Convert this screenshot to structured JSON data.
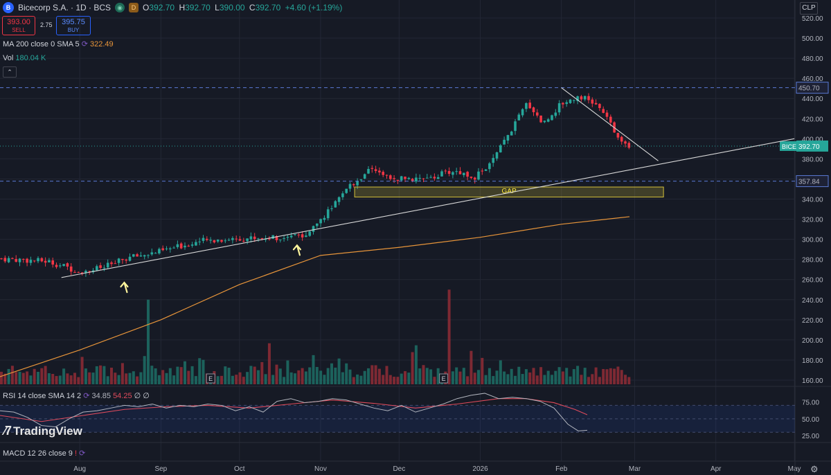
{
  "header": {
    "symbol": "Bicecorp S.A. · 1D · BCS",
    "logo_icon": "bicecorp-logo-icon",
    "ohlc": [
      {
        "k": "O",
        "v": "392.70"
      },
      {
        "k": "H",
        "v": "392.70"
      },
      {
        "k": "L",
        "v": "390.00"
      },
      {
        "k": "C",
        "v": "392.70"
      }
    ],
    "change": "+4.60 (+1.19%)",
    "sell_value": "393.00",
    "sell_label": "SELL",
    "spread": "2.75",
    "buy_value": "395.75",
    "buy_label": "BUY",
    "d_badge": "D"
  },
  "indicators": {
    "ma_label": "MA 200 close 0 SMA 5",
    "ma_value": "322.49",
    "vol_label": "Vol",
    "vol_value": "180.04 K",
    "rsi_label": "RSI 14 close SMA 14 2",
    "rsi_value": "34.85",
    "rsi_sma": "54.25",
    "rsi_extra": "∅ ∅",
    "macd_label": "MACD 12 26 close 9"
  },
  "currency": "CLP",
  "brand": "TradingView",
  "colors": {
    "up": "#26a69a",
    "down": "#f23645",
    "ma": "#e8953a",
    "rsi": "#b2b5be",
    "rsi_sma": "#e04b5c",
    "accent": "#2962ff"
  },
  "chart_data": {
    "type": "candlestick",
    "y_ticks": [
      "520.00",
      "500.00",
      "480.00",
      "460.00",
      "440.00",
      "420.00",
      "400.00",
      "380.00",
      "360.00",
      "340.00",
      "320.00",
      "300.00",
      "280.00",
      "260.00",
      "240.00",
      "220.00",
      "200.00",
      "180.00",
      "160.00"
    ],
    "y_range": [
      160,
      520
    ],
    "x_labels": [
      "Aug",
      "Sep",
      "Oct",
      "Nov",
      "Dec",
      "2026",
      "Feb",
      "Mar",
      "Apr",
      "May"
    ],
    "x_label_dates": [
      "2025-08-01",
      "2025-09-01",
      "2025-10-01",
      "2025-11-01",
      "2025-12-01",
      "2026-01-01",
      "2026-02-01",
      "2026-03-01",
      "2026-04-01",
      "2026-05-01"
    ],
    "price_path": [
      [
        "2025-07-01",
        281
      ],
      [
        "2025-07-20",
        278
      ],
      [
        "2025-08-01",
        268
      ],
      [
        "2025-08-10",
        272
      ],
      [
        "2025-08-20",
        282
      ],
      [
        "2025-09-01",
        288
      ],
      [
        "2025-09-15",
        298
      ],
      [
        "2025-10-01",
        301
      ],
      [
        "2025-10-15",
        302
      ],
      [
        "2025-10-25",
        303
      ],
      [
        "2025-11-01",
        320
      ],
      [
        "2025-11-07",
        336
      ],
      [
        "2025-11-12",
        352
      ],
      [
        "2025-11-20",
        370
      ],
      [
        "2025-11-28",
        360
      ],
      [
        "2025-12-10",
        360
      ],
      [
        "2025-12-22",
        368
      ],
      [
        "2025-12-30",
        362
      ],
      [
        "2026-01-05",
        375
      ],
      [
        "2026-01-12",
        405
      ],
      [
        "2026-01-19",
        436
      ],
      [
        "2026-01-25",
        415
      ],
      [
        "2026-02-01",
        435
      ],
      [
        "2026-02-08",
        443
      ],
      [
        "2026-02-15",
        432
      ],
      [
        "2026-02-22",
        405
      ],
      [
        "2026-02-27",
        392.7
      ]
    ],
    "ma200_path": [
      [
        "2025-07-01",
        163
      ],
      [
        "2025-08-01",
        190
      ],
      [
        "2025-09-01",
        220
      ],
      [
        "2025-10-01",
        255
      ],
      [
        "2025-11-01",
        284
      ],
      [
        "2025-12-01",
        292
      ],
      [
        "2026-01-01",
        302
      ],
      [
        "2026-02-01",
        315
      ],
      [
        "2026-02-27",
        322.49
      ]
    ],
    "volume_spikes": [
      {
        "date": "2025-08-27",
        "value": "240"
      },
      {
        "date": "2025-12-20",
        "value": "250"
      }
    ],
    "price_labels": [
      {
        "text": "450.70",
        "value": 450.7,
        "style": "dashed"
      },
      {
        "text": "392.70",
        "value": 392.7,
        "style": "dotted",
        "ticker": "BICE"
      },
      {
        "text": "357.84",
        "value": 357.84,
        "style": "dashed"
      }
    ],
    "gap_zone": {
      "label": "GAP",
      "from": 342,
      "to": 352,
      "start": "2025-11-14",
      "end": "2026-03-12"
    },
    "support_line": {
      "start": [
        "2025-07-25",
        262
      ],
      "end": [
        "2026-05-01",
        400
      ]
    },
    "resistance_line": {
      "start": [
        "2026-02-01",
        450.7
      ],
      "end": [
        "2026-03-10",
        378
      ]
    },
    "arrows": [
      {
        "date": "2025-08-18",
        "value": 257
      },
      {
        "date": "2025-10-23",
        "value": 294
      }
    ],
    "earnings_marks": [
      {
        "date": "2025-09-20",
        "label": "E"
      },
      {
        "date": "2025-12-18",
        "label": "E"
      }
    ],
    "rsi": {
      "y_ticks": [
        "75.00",
        "50.00",
        "25.00"
      ],
      "y_range": [
        20,
        90
      ],
      "band": [
        30,
        70
      ],
      "rsi_path": [
        [
          0,
          62
        ],
        [
          20,
          60
        ],
        [
          40,
          52
        ],
        [
          60,
          40
        ],
        [
          80,
          38
        ],
        [
          100,
          50
        ],
        [
          120,
          60
        ],
        [
          140,
          62
        ],
        [
          160,
          66
        ],
        [
          180,
          70
        ],
        [
          200,
          68
        ],
        [
          220,
          72
        ],
        [
          240,
          66
        ],
        [
          260,
          70
        ],
        [
          280,
          68
        ],
        [
          300,
          72
        ],
        [
          320,
          70
        ],
        [
          340,
          62
        ],
        [
          360,
          68
        ],
        [
          380,
          60
        ],
        [
          400,
          76
        ],
        [
          420,
          80
        ],
        [
          440,
          74
        ],
        [
          460,
          76
        ],
        [
          480,
          80
        ],
        [
          500,
          78
        ],
        [
          520,
          72
        ],
        [
          540,
          66
        ],
        [
          560,
          62
        ],
        [
          580,
          70
        ],
        [
          600,
          60
        ],
        [
          620,
          66
        ],
        [
          640,
          72
        ],
        [
          660,
          80
        ],
        [
          680,
          85
        ],
        [
          700,
          88
        ],
        [
          720,
          80
        ],
        [
          740,
          82
        ],
        [
          760,
          80
        ],
        [
          780,
          76
        ],
        [
          800,
          66
        ],
        [
          820,
          42
        ],
        [
          835,
          32
        ],
        [
          848,
          33
        ]
      ],
      "sma_path": [
        [
          0,
          55
        ],
        [
          60,
          46
        ],
        [
          120,
          55
        ],
        [
          180,
          64
        ],
        [
          240,
          68
        ],
        [
          300,
          70
        ],
        [
          360,
          66
        ],
        [
          420,
          72
        ],
        [
          480,
          78
        ],
        [
          540,
          73
        ],
        [
          600,
          66
        ],
        [
          660,
          72
        ],
        [
          720,
          80
        ],
        [
          760,
          80
        ],
        [
          800,
          74
        ],
        [
          830,
          64
        ],
        [
          848,
          56
        ]
      ]
    }
  }
}
